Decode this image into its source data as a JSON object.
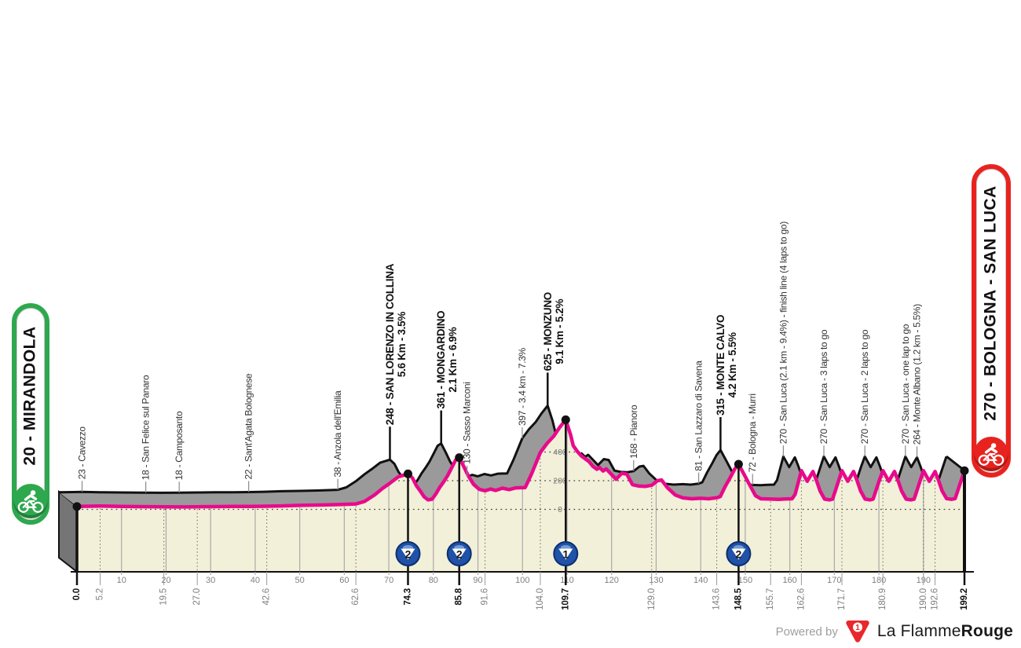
{
  "stage": {
    "start_badge": {
      "label": "20 - MIRANDOLA",
      "color": "#2ea84e",
      "icon": "cyclist-icon"
    },
    "finish_badge": {
      "label": "270 - BOLOGNA - SAN LUCA",
      "color": "#e8231f",
      "icon": "cyclist-icon"
    }
  },
  "footer": {
    "powered_by": "Powered by",
    "brand_regular": "La Flamme",
    "brand_bold": "Rouge",
    "logo_number": "1",
    "logo_color": "#e8282b"
  },
  "colors": {
    "profile_line": "#e80a8b",
    "face_fill": "#f3f0d9",
    "top_band": "#9a9a9a",
    "side_wedge": "#757575",
    "outline": "#111111",
    "grid": "#a9a9a9",
    "minor_text": "#333333",
    "axis_minor_text": "#808080",
    "badge_blue": "#1f52a8",
    "badge_rim": "#0d2f6e"
  },
  "chart_data": {
    "type": "area",
    "title": "Stage profile 20 - Mirandola to 270 - Bologna - San Luca",
    "x_unit": "km",
    "y_unit": "m",
    "xlim": [
      0,
      199.2
    ],
    "x_ticks": [
      10,
      20,
      30,
      40,
      50,
      60,
      70,
      80,
      90,
      100,
      110,
      120,
      130,
      140,
      150,
      160,
      170,
      180,
      190
    ],
    "y_gridlines": [
      0,
      200,
      400
    ],
    "y_gridline_labels": [
      "0",
      "200",
      "400"
    ],
    "waypoints": [
      {
        "km": 0.0,
        "elev": 20,
        "name": "",
        "stats": "",
        "km_label": "0.0",
        "type": "terminal"
      },
      {
        "km": 5.2,
        "elev": 23,
        "name": "23 - Cavezzo",
        "stats": "",
        "km_label": "5.2",
        "type": "minor"
      },
      {
        "km": 19.5,
        "elev": 18,
        "name": "18 - San Felice sul Panaro",
        "stats": "",
        "km_label": "19.5",
        "type": "minor"
      },
      {
        "km": 27.0,
        "elev": 18,
        "name": "18 - Camposanto",
        "stats": "",
        "km_label": "27.0",
        "type": "minor"
      },
      {
        "km": 42.6,
        "elev": 22,
        "name": "22 - Sant'Agata Bolognese",
        "stats": "",
        "km_label": "42.6",
        "type": "minor"
      },
      {
        "km": 62.6,
        "elev": 38,
        "name": "38 - Anzola dell'Emilia",
        "stats": "",
        "km_label": "62.6",
        "type": "minor"
      },
      {
        "km": 74.3,
        "elev": 248,
        "name": "248 - SAN LORENZO IN COLLINA",
        "stats": "5.6 Km - 3.5%",
        "km_label": "74.3",
        "type": "summit",
        "category": "2"
      },
      {
        "km": 85.8,
        "elev": 361,
        "name": "361 - MONGARDINO",
        "stats": "2.1 Km - 6.9%",
        "km_label": "85.8",
        "type": "summit",
        "category": "2"
      },
      {
        "km": 91.6,
        "elev": 130,
        "name": "130 - Sasso Marconi",
        "stats": "",
        "km_label": "91.6",
        "type": "minor"
      },
      {
        "km": 104.0,
        "elev": 397,
        "name": "397 - 3.4 km - 7.3%",
        "stats": "",
        "km_label": "104.0",
        "type": "minor"
      },
      {
        "km": 109.7,
        "elev": 625,
        "name": "625 - MONZUNO",
        "stats": "9.1 Km - 5.2%",
        "km_label": "109.7",
        "type": "summit",
        "category": "1"
      },
      {
        "km": 129.0,
        "elev": 168,
        "name": "168 - Pianoro",
        "stats": "",
        "km_label": "129.0",
        "type": "minor"
      },
      {
        "km": 143.6,
        "elev": 81,
        "name": "81 - San Lazzaro di Savena",
        "stats": "",
        "km_label": "143.6",
        "type": "minor"
      },
      {
        "km": 148.5,
        "elev": 315,
        "name": "315 - MONTE CALVO",
        "stats": "4.2 Km - 5.5%",
        "km_label": "148.5",
        "type": "summit",
        "category": "2"
      },
      {
        "km": 155.7,
        "elev": 72,
        "name": "72 - Bologna - Murri",
        "stats": "",
        "km_label": "155.7",
        "type": "minor"
      },
      {
        "km": 162.6,
        "elev": 270,
        "name": "270 - San Luca (2.1 km - 9.4%) - finish line (4 laps to go)",
        "stats": "",
        "km_label": "162.6",
        "type": "minor"
      },
      {
        "km": 171.7,
        "elev": 270,
        "name": "270 - San Luca - 3 laps to go",
        "stats": "",
        "km_label": "171.7",
        "type": "minor"
      },
      {
        "km": 180.9,
        "elev": 270,
        "name": "270 - San Luca - 2 laps to go",
        "stats": "",
        "km_label": "180.9",
        "type": "minor"
      },
      {
        "km": 190.0,
        "elev": 270,
        "name": "270 - San Luca - one lap to go",
        "stats": "",
        "km_label": "190.0",
        "type": "minor"
      },
      {
        "km": 192.6,
        "elev": 264,
        "name": "264 - Monte Albano (1.2 km - 5.5%)",
        "stats": "",
        "km_label": "192.6",
        "type": "minor"
      },
      {
        "km": 199.2,
        "elev": 270,
        "name": "",
        "stats": "",
        "km_label": "199.2",
        "type": "terminal"
      }
    ],
    "profile_points": [
      [
        0,
        20
      ],
      [
        3,
        22
      ],
      [
        5.2,
        23
      ],
      [
        10,
        20
      ],
      [
        14,
        19
      ],
      [
        19.5,
        18
      ],
      [
        23,
        17
      ],
      [
        27,
        18
      ],
      [
        31,
        19
      ],
      [
        35,
        20
      ],
      [
        39,
        21
      ],
      [
        42.6,
        22
      ],
      [
        46,
        24
      ],
      [
        50,
        28
      ],
      [
        54,
        30
      ],
      [
        58,
        33
      ],
      [
        62.6,
        38
      ],
      [
        64.5,
        55
      ],
      [
        66.8,
        101
      ],
      [
        68.6,
        146
      ],
      [
        70.3,
        184
      ],
      [
        72.1,
        227
      ],
      [
        74.3,
        248
      ],
      [
        75.3,
        219
      ],
      [
        76.2,
        164
      ],
      [
        77.1,
        126
      ],
      [
        77.9,
        88
      ],
      [
        78.8,
        66
      ],
      [
        79.7,
        71
      ],
      [
        80.6,
        110
      ],
      [
        81.4,
        153
      ],
      [
        82.3,
        192
      ],
      [
        83.2,
        236
      ],
      [
        84.1,
        290
      ],
      [
        85,
        345
      ],
      [
        85.8,
        361
      ],
      [
        86.8,
        300
      ],
      [
        87.8,
        235
      ],
      [
        89,
        175
      ],
      [
        90.3,
        140
      ],
      [
        91.6,
        130
      ],
      [
        92.8,
        142
      ],
      [
        94,
        132
      ],
      [
        95.5,
        148
      ],
      [
        97,
        138
      ],
      [
        98.5,
        150
      ],
      [
        100.6,
        152
      ],
      [
        102,
        245
      ],
      [
        104,
        397
      ],
      [
        105.5,
        460
      ],
      [
        107,
        510
      ],
      [
        108.3,
        570
      ],
      [
        109.7,
        625
      ],
      [
        110.8,
        520
      ],
      [
        111.4,
        444
      ],
      [
        112.3,
        405
      ],
      [
        113.2,
        373
      ],
      [
        114.9,
        334
      ],
      [
        115.8,
        300
      ],
      [
        116.7,
        280
      ],
      [
        117.3,
        292
      ],
      [
        118.1,
        268
      ],
      [
        118.8,
        282
      ],
      [
        120.2,
        236
      ],
      [
        121,
        210
      ],
      [
        122.3,
        252
      ],
      [
        123.4,
        246
      ],
      [
        124.7,
        172
      ],
      [
        126,
        163
      ],
      [
        127.5,
        160
      ],
      [
        129,
        168
      ],
      [
        130.3,
        200
      ],
      [
        131.2,
        205
      ],
      [
        132.5,
        152
      ],
      [
        134.3,
        100
      ],
      [
        136,
        80
      ],
      [
        138,
        74
      ],
      [
        140,
        77
      ],
      [
        141.8,
        74
      ],
      [
        143.6,
        81
      ],
      [
        144.4,
        90
      ],
      [
        145.5,
        160
      ],
      [
        146.6,
        220
      ],
      [
        147.6,
        280
      ],
      [
        148.5,
        315
      ],
      [
        149.8,
        240
      ],
      [
        151,
        170
      ],
      [
        152.3,
        95
      ],
      [
        153.5,
        74
      ],
      [
        155.7,
        72
      ],
      [
        157.5,
        70
      ],
      [
        159,
        73
      ],
      [
        160.5,
        74
      ],
      [
        161.2,
        105
      ],
      [
        162.6,
        270
      ],
      [
        163.9,
        196
      ],
      [
        165.2,
        264
      ],
      [
        166,
        200
      ],
      [
        166.8,
        128
      ],
      [
        167.8,
        72
      ],
      [
        168.9,
        66
      ],
      [
        169.6,
        72
      ],
      [
        170.3,
        138
      ],
      [
        171,
        204
      ],
      [
        171.7,
        270
      ],
      [
        173.0,
        196
      ],
      [
        174.3,
        264
      ],
      [
        175.1,
        200
      ],
      [
        175.9,
        128
      ],
      [
        176.9,
        72
      ],
      [
        178.0,
        66
      ],
      [
        178.7,
        72
      ],
      [
        179.4,
        138
      ],
      [
        180.1,
        204
      ],
      [
        180.9,
        270
      ],
      [
        182.2,
        196
      ],
      [
        183.5,
        264
      ],
      [
        184.3,
        200
      ],
      [
        185.1,
        128
      ],
      [
        186.1,
        72
      ],
      [
        187.2,
        66
      ],
      [
        187.9,
        72
      ],
      [
        188.6,
        138
      ],
      [
        189.3,
        204
      ],
      [
        190.0,
        270
      ],
      [
        191.3,
        196
      ],
      [
        192.6,
        264
      ],
      [
        193.4,
        200
      ],
      [
        194.2,
        128
      ],
      [
        195.2,
        75
      ],
      [
        196.3,
        70
      ],
      [
        197.1,
        75
      ],
      [
        197.8,
        140
      ],
      [
        198.5,
        205
      ],
      [
        199.2,
        270
      ]
    ]
  }
}
